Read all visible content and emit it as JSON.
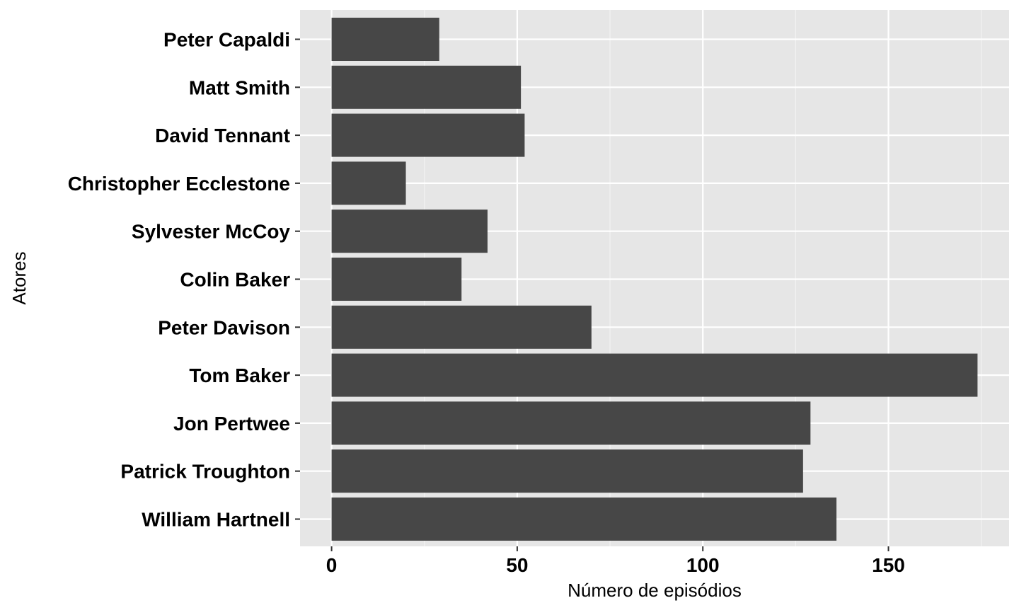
{
  "chart_data": {
    "type": "bar",
    "orientation": "horizontal",
    "categories": [
      "Peter Capaldi",
      "Matt Smith",
      "David Tennant",
      "Christopher Ecclestone",
      "Sylvester McCoy",
      "Colin Baker",
      "Peter Davison",
      "Tom Baker",
      "Jon Pertwee",
      "Patrick Troughton",
      "William Hartnell"
    ],
    "values": [
      29,
      51,
      52,
      20,
      42,
      35,
      70,
      174,
      129,
      127,
      136
    ],
    "xlabel": "Número de episódios",
    "ylabel": "Atores",
    "xlim": [
      -8.5,
      182.5
    ],
    "x_ticks": [
      0,
      50,
      100,
      150
    ],
    "x_tick_labels": [
      "0",
      "50",
      "100",
      "150"
    ],
    "grid": true,
    "legend": "none",
    "colors": {
      "bar": "#474747",
      "panel": "#e6e6e6",
      "grid": "#ffffff"
    }
  }
}
